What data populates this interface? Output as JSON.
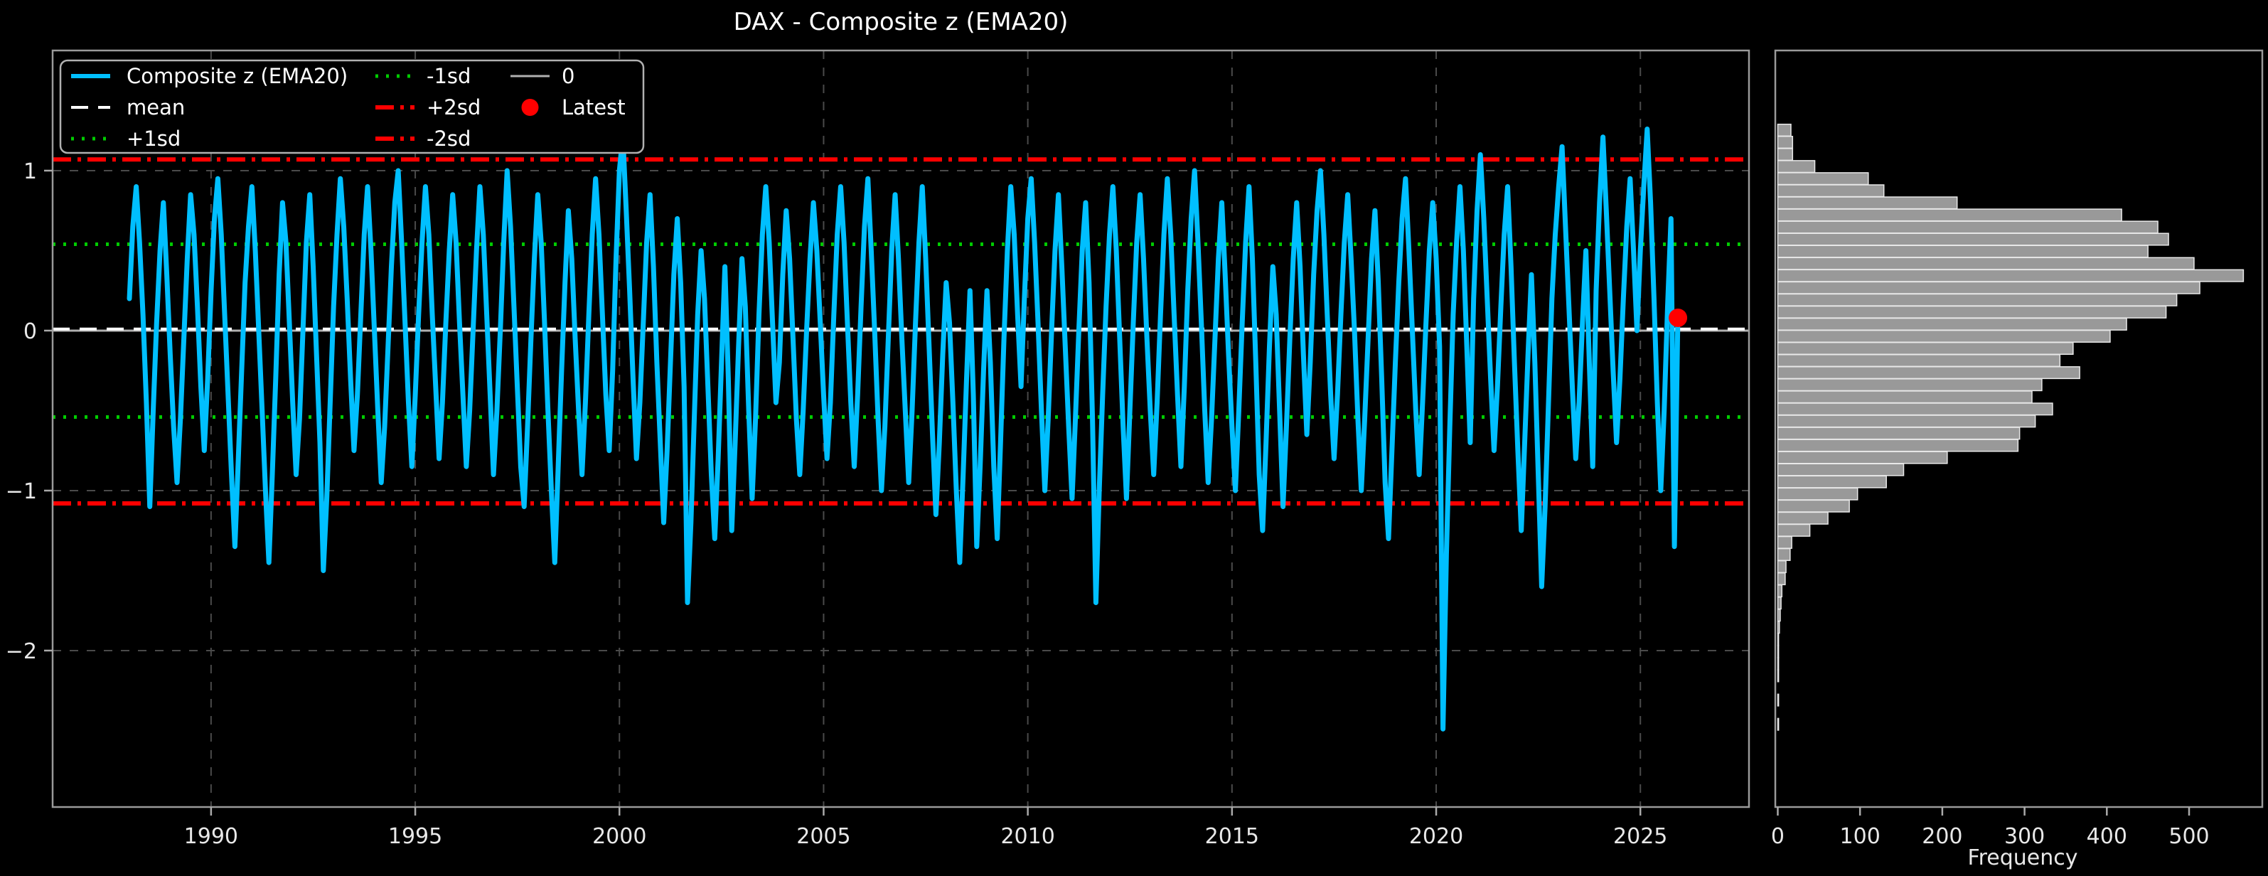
{
  "figure": {
    "title": "DAX - Composite z (EMA20)",
    "background": "#000000",
    "text_color": "#e8e8e8",
    "spine_color": "#9a9a9a",
    "grid_color": "#4a4a4a"
  },
  "chart_data": [
    {
      "type": "line",
      "panel": "main",
      "title": "DAX - Composite z (EMA20)",
      "xlabel": "",
      "ylabel": "",
      "xlim": [
        1986.12,
        2027.66
      ],
      "ylim": [
        -2.978,
        1.751
      ],
      "x_ticks": [
        1990,
        1995,
        2000,
        2005,
        2010,
        2015,
        2020,
        2025
      ],
      "y_ticks": [
        1,
        0,
        -1,
        -2
      ],
      "grid": true,
      "legend_position": "upper-left",
      "ref_lines": [
        {
          "name": "0",
          "value": 0.0,
          "color": "#b0b0b0",
          "style": "solid",
          "width": 3
        },
        {
          "name": "+1sd",
          "value": 0.54,
          "color": "#00cc00",
          "style": "dotted",
          "width": 5
        },
        {
          "name": "-1sd",
          "value": -0.54,
          "color": "#00cc00",
          "style": "dotted",
          "width": 5
        },
        {
          "name": "+2sd",
          "value": 1.07,
          "color": "#ff0000",
          "style": "dashdot",
          "width": 6
        },
        {
          "name": "-2sd",
          "value": -1.08,
          "color": "#ff0000",
          "style": "dashdot",
          "width": 6
        },
        {
          "name": "mean",
          "value": 0.01,
          "color": "#ffffff",
          "style": "dashed",
          "width": 4
        }
      ],
      "latest_point": {
        "x": 2025.92,
        "y": 0.08,
        "color": "#ff0000",
        "label": "Latest"
      },
      "series": [
        {
          "name": "Composite z (EMA20)",
          "color": "#00bfff",
          "width": 7,
          "x_start": 1988.0,
          "x_step_years": 0.083333,
          "values": [
            0.2,
            0.65,
            0.9,
            0.55,
            0.1,
            -0.45,
            -1.1,
            -0.5,
            0.05,
            0.5,
            0.8,
            0.35,
            -0.15,
            -0.6,
            -0.95,
            -0.55,
            -0.05,
            0.45,
            0.85,
            0.6,
            0.15,
            -0.35,
            -0.75,
            -0.3,
            0.25,
            0.7,
            0.95,
            0.6,
            0.1,
            -0.4,
            -0.9,
            -1.35,
            -0.8,
            -0.25,
            0.3,
            0.65,
            0.9,
            0.5,
            0.0,
            -0.5,
            -1.0,
            -1.45,
            -0.9,
            -0.3,
            0.35,
            0.8,
            0.55,
            0.05,
            -0.45,
            -0.9,
            -0.55,
            0.0,
            0.55,
            0.85,
            0.4,
            -0.15,
            -0.7,
            -1.5,
            -1.05,
            -0.45,
            0.15,
            0.6,
            0.95,
            0.65,
            0.2,
            -0.3,
            -0.75,
            -0.4,
            0.1,
            0.6,
            0.9,
            0.5,
            0.0,
            -0.5,
            -0.95,
            -0.6,
            -0.1,
            0.4,
            0.8,
            1.0,
            0.55,
            0.05,
            -0.45,
            -0.85,
            -0.4,
            0.1,
            0.55,
            0.9,
            0.6,
            0.1,
            -0.35,
            -0.8,
            -0.45,
            0.05,
            0.5,
            0.85,
            0.55,
            0.05,
            -0.4,
            -0.85,
            -0.5,
            0.0,
            0.5,
            0.9,
            0.6,
            0.1,
            -0.4,
            -0.9,
            -0.5,
            0.0,
            0.55,
            1.0,
            0.65,
            0.15,
            -0.35,
            -0.85,
            -1.1,
            -0.6,
            -0.05,
            0.45,
            0.85,
            0.55,
            0.05,
            -0.5,
            -1.0,
            -1.45,
            -0.85,
            -0.25,
            0.3,
            0.75,
            0.45,
            -0.05,
            -0.5,
            -0.9,
            -0.45,
            0.1,
            0.6,
            0.95,
            0.6,
            0.1,
            -0.4,
            -0.75,
            -0.25,
            0.45,
            1.0,
            1.22,
            0.75,
            0.25,
            -0.3,
            -0.8,
            -0.45,
            0.05,
            0.55,
            0.85,
            0.4,
            -0.2,
            -0.7,
            -1.2,
            -0.75,
            -0.2,
            0.35,
            0.7,
            0.3,
            -0.35,
            -1.7,
            -1.2,
            -0.55,
            0.1,
            0.5,
            0.2,
            -0.35,
            -0.9,
            -1.3,
            -0.8,
            -0.2,
            0.4,
            -0.3,
            -1.25,
            -0.7,
            -0.1,
            0.45,
            0.15,
            -0.5,
            -1.05,
            -0.55,
            0.1,
            0.6,
            0.9,
            0.55,
            0.05,
            -0.45,
            -0.2,
            0.35,
            0.75,
            0.45,
            -0.05,
            -0.55,
            -0.9,
            -0.5,
            0.0,
            0.45,
            0.8,
            0.5,
            0.05,
            -0.4,
            -0.8,
            -0.45,
            0.1,
            0.6,
            0.9,
            0.55,
            0.05,
            -0.45,
            -0.85,
            -0.4,
            0.15,
            0.65,
            0.95,
            0.5,
            0.0,
            -0.55,
            -1.0,
            -0.6,
            -0.05,
            0.5,
            0.85,
            0.45,
            -0.05,
            -0.5,
            -0.95,
            -0.5,
            0.05,
            0.55,
            0.9,
            0.45,
            -0.1,
            -0.65,
            -1.15,
            -0.7,
            -0.15,
            0.3,
            0.05,
            -0.45,
            -1.0,
            -1.45,
            -0.9,
            -0.3,
            0.25,
            -0.4,
            -1.35,
            -0.85,
            -0.25,
            0.25,
            -0.2,
            -0.85,
            -1.3,
            -0.7,
            -0.05,
            0.5,
            0.9,
            0.6,
            0.1,
            -0.35,
            0.2,
            0.7,
            0.95,
            0.55,
            0.05,
            -0.5,
            -1.0,
            -0.55,
            0.0,
            0.5,
            0.85,
            0.4,
            -0.1,
            -0.6,
            -1.05,
            -0.55,
            0.0,
            0.5,
            0.8,
            0.3,
            -0.55,
            -1.7,
            -1.0,
            -0.4,
            0.15,
            0.6,
            0.9,
            0.5,
            -0.05,
            -0.6,
            -1.05,
            -0.5,
            0.05,
            0.55,
            0.85,
            0.45,
            -0.05,
            -0.5,
            -0.9,
            -0.45,
            0.1,
            0.6,
            0.95,
            0.6,
            0.1,
            -0.4,
            -0.85,
            -0.35,
            0.25,
            0.7,
            1.0,
            0.55,
            0.05,
            -0.5,
            -0.95,
            -0.55,
            -0.05,
            0.45,
            0.8,
            0.35,
            -0.15,
            -0.6,
            -1.0,
            -0.5,
            0.05,
            0.55,
            0.9,
            0.45,
            -0.2,
            -0.9,
            -1.25,
            -0.7,
            -0.1,
            0.4,
            0.1,
            -0.5,
            -1.1,
            -0.6,
            -0.05,
            0.45,
            0.8,
            0.4,
            -0.15,
            -0.65,
            -0.2,
            0.35,
            0.75,
            1.0,
            0.6,
            0.1,
            -0.4,
            -0.8,
            -0.4,
            0.1,
            0.55,
            0.85,
            0.45,
            0.0,
            -0.55,
            -1.0,
            -0.55,
            -0.05,
            0.45,
            0.75,
            0.3,
            -0.3,
            -0.95,
            -1.3,
            -0.75,
            -0.2,
            0.3,
            0.7,
            0.95,
            0.5,
            0.0,
            -0.5,
            -0.9,
            -0.45,
            0.05,
            0.5,
            0.8,
            0.45,
            -0.1,
            -2.49,
            -1.4,
            -0.6,
            0.1,
            0.55,
            0.9,
            0.5,
            -0.1,
            -0.7,
            0.2,
            0.75,
            1.1,
            0.7,
            0.2,
            -0.3,
            -0.75,
            -0.35,
            0.15,
            0.6,
            0.9,
            0.4,
            -0.2,
            -0.75,
            -1.25,
            -0.7,
            -0.15,
            0.35,
            -0.2,
            -0.9,
            -1.6,
            -1.1,
            -0.45,
            0.2,
            0.6,
            0.9,
            1.15,
            0.65,
            0.15,
            -0.35,
            -0.8,
            -0.45,
            0.05,
            0.5,
            -0.2,
            -0.85,
            0.25,
            0.8,
            1.21,
            0.75,
            0.25,
            -0.25,
            -0.7,
            -0.3,
            0.2,
            0.65,
            0.95,
            0.5,
            0.0,
            0.5,
            0.9,
            1.26,
            0.8,
            0.2,
            -0.45,
            -1.0,
            -0.5,
            0.15,
            0.7,
            -1.35,
            0.08
          ]
        }
      ]
    },
    {
      "type": "bar",
      "panel": "histogram",
      "orientation": "horizontal",
      "title": "",
      "xlabel": "Frequency",
      "ylabel": "",
      "x_ticks": [
        0,
        100,
        200,
        300,
        400,
        500
      ],
      "xlim": [
        -3,
        589
      ],
      "grid": false,
      "bar_color": "#999999",
      "bar_edge_color": "#e8e8e8",
      "bins": {
        "z_top": 1.29,
        "bin_width": 0.0758,
        "frequencies": [
          16,
          18,
          18,
          45,
          110,
          129,
          218,
          418,
          462,
          475,
          450,
          506,
          566,
          513,
          485,
          472,
          424,
          404,
          359,
          343,
          367,
          321,
          309,
          334,
          313,
          294,
          292,
          206,
          153,
          132,
          97,
          87,
          61,
          39,
          17,
          15,
          10,
          9,
          5,
          4,
          3,
          2,
          1,
          1,
          1,
          1,
          0,
          1,
          0,
          1
        ]
      }
    }
  ],
  "legend": {
    "items": [
      {
        "label": "Composite z (EMA20)",
        "swatch": "line",
        "color": "#00bfff",
        "style": "solid",
        "width": 6
      },
      {
        "label": "mean",
        "swatch": "line",
        "color": "#ffffff",
        "style": "dashed",
        "width": 4
      },
      {
        "label": "+1sd",
        "swatch": "line",
        "color": "#00cc00",
        "style": "dotted",
        "width": 5
      },
      {
        "label": "-1sd",
        "swatch": "line",
        "color": "#00cc00",
        "style": "dotted",
        "width": 5
      },
      {
        "label": "+2sd",
        "swatch": "line",
        "color": "#ff0000",
        "style": "dashdot",
        "width": 6
      },
      {
        "label": "-2sd",
        "swatch": "line",
        "color": "#ff0000",
        "style": "dashdot",
        "width": 6
      },
      {
        "label": "0",
        "swatch": "line",
        "color": "#b0b0b0",
        "style": "solid",
        "width": 3
      },
      {
        "label": "Latest",
        "swatch": "marker",
        "color": "#ff0000",
        "style": "solid",
        "width": 6
      }
    ]
  }
}
